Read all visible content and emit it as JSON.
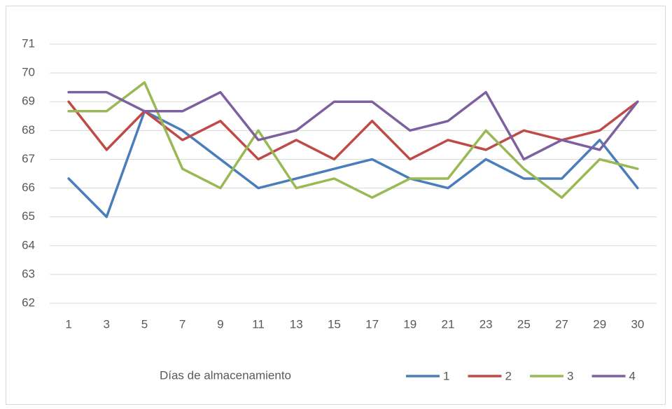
{
  "chart_data": {
    "type": "line",
    "x_label": "Días de almacenamiento",
    "categories": [
      "1",
      "3",
      "5",
      "7",
      "9",
      "11",
      "13",
      "15",
      "17",
      "19",
      "21",
      "23",
      "25",
      "27",
      "29",
      "30"
    ],
    "series": [
      {
        "name": "1",
        "color": "#4a7ebb",
        "values": [
          66.33,
          65,
          68.67,
          68,
          67,
          66,
          66.33,
          66.67,
          67,
          66.33,
          66,
          67,
          66.33,
          66.33,
          67.67,
          66
        ]
      },
      {
        "name": "2",
        "color": "#be4b48",
        "values": [
          69,
          67.33,
          68.67,
          67.67,
          68.33,
          67,
          67.67,
          67,
          68.33,
          67,
          67.67,
          67.33,
          68,
          67.67,
          68,
          69
        ]
      },
      {
        "name": "3",
        "color": "#98b954",
        "values": [
          68.67,
          68.67,
          69.67,
          66.67,
          66,
          68,
          66,
          66.33,
          65.67,
          66.33,
          66.33,
          68,
          66.67,
          65.67,
          67,
          66.67
        ]
      },
      {
        "name": "4",
        "color": "#7d60a0",
        "values": [
          69.33,
          69.33,
          68.67,
          68.67,
          69.33,
          67.67,
          68,
          69,
          69,
          68,
          68.33,
          69.33,
          67,
          67.67,
          67.33,
          69
        ]
      }
    ],
    "ylim": [
      62,
      71
    ],
    "yticks": [
      62,
      63,
      64,
      65,
      66,
      67,
      68,
      69,
      70,
      71
    ],
    "grid": true
  }
}
